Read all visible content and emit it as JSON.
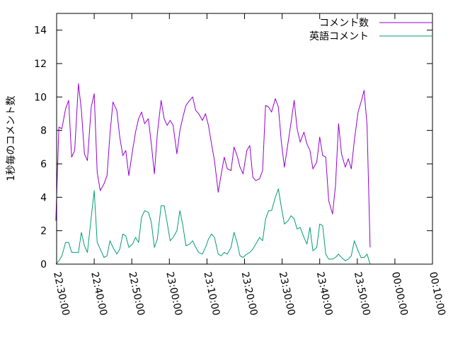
{
  "chart_data": {
    "type": "line",
    "title": "",
    "xlabel": "",
    "ylabel": "1秒毎のコメント数",
    "xlim": [
      "22:30:00",
      "00:10:00"
    ],
    "ylim": [
      0,
      15
    ],
    "x_ticks": [
      "22:30:00",
      "22:40:00",
      "22:50:00",
      "23:00:00",
      "23:10:00",
      "23:20:00",
      "23:30:00",
      "23:40:00",
      "23:50:00",
      "00:00:00",
      "00:10:00"
    ],
    "y_ticks": [
      0,
      2,
      4,
      6,
      8,
      10,
      12,
      14
    ],
    "grid": false,
    "legend_position": "top-right",
    "series": [
      {
        "name": "コメント数",
        "color": "#9400d3",
        "points": [
          [
            "22:29:48",
            2.6
          ],
          [
            "22:30:36",
            8.2
          ],
          [
            "22:31:24",
            8.1
          ],
          [
            "22:32:24",
            9.3
          ],
          [
            "22:33:12",
            9.8
          ],
          [
            "22:34:00",
            6.4
          ],
          [
            "22:34:48",
            6.8
          ],
          [
            "22:35:48",
            10.8
          ],
          [
            "22:36:36",
            9.2
          ],
          [
            "22:37:24",
            6.6
          ],
          [
            "22:38:12",
            6.2
          ],
          [
            "22:39:12",
            9.4
          ],
          [
            "22:40:00",
            10.2
          ],
          [
            "22:40:48",
            5.5
          ],
          [
            "22:41:36",
            4.4
          ],
          [
            "22:42:36",
            4.8
          ],
          [
            "22:43:24",
            5.3
          ],
          [
            "22:44:12",
            7.8
          ],
          [
            "22:45:00",
            9.7
          ],
          [
            "22:46:00",
            9.2
          ],
          [
            "22:46:48",
            7.6
          ],
          [
            "22:47:36",
            6.5
          ],
          [
            "22:48:24",
            6.8
          ],
          [
            "22:49:12",
            5.3
          ],
          [
            "22:50:12",
            6.8
          ],
          [
            "22:51:00",
            7.9
          ],
          [
            "22:51:48",
            8.7
          ],
          [
            "22:52:36",
            9.1
          ],
          [
            "22:53:24",
            8.4
          ],
          [
            "22:54:24",
            8.7
          ],
          [
            "22:55:12",
            7.2
          ],
          [
            "22:56:00",
            5.4
          ],
          [
            "22:56:48",
            7.8
          ],
          [
            "22:57:48",
            9.8
          ],
          [
            "22:58:36",
            8.7
          ],
          [
            "22:59:24",
            8.3
          ],
          [
            "23:00:12",
            8.6
          ],
          [
            "23:01:00",
            8.3
          ],
          [
            "23:02:00",
            6.6
          ],
          [
            "23:02:48",
            8.0
          ],
          [
            "23:03:36",
            8.8
          ],
          [
            "23:04:24",
            9.5
          ],
          [
            "23:05:24",
            9.8
          ],
          [
            "23:06:12",
            10.0
          ],
          [
            "23:07:00",
            9.2
          ],
          [
            "23:07:48",
            9.0
          ],
          [
            "23:08:48",
            8.6
          ],
          [
            "23:09:36",
            9.0
          ],
          [
            "23:10:24",
            8.3
          ],
          [
            "23:11:12",
            7.2
          ],
          [
            "23:12:00",
            6.2
          ],
          [
            "23:13:00",
            4.3
          ],
          [
            "23:13:48",
            5.4
          ],
          [
            "23:14:36",
            6.4
          ],
          [
            "23:15:24",
            5.7
          ],
          [
            "23:16:24",
            5.6
          ],
          [
            "23:17:12",
            7.0
          ],
          [
            "23:18:00",
            6.5
          ],
          [
            "23:18:48",
            5.8
          ],
          [
            "23:19:36",
            5.4
          ],
          [
            "23:20:36",
            6.8
          ],
          [
            "23:21:24",
            7.1
          ],
          [
            "23:22:12",
            5.2
          ],
          [
            "23:23:00",
            5.0
          ],
          [
            "23:24:00",
            5.1
          ],
          [
            "23:24:48",
            5.6
          ],
          [
            "23:25:36",
            9.5
          ],
          [
            "23:26:24",
            9.4
          ],
          [
            "23:27:12",
            9.1
          ],
          [
            "23:28:12",
            9.9
          ],
          [
            "23:29:00",
            9.4
          ],
          [
            "23:29:48",
            7.3
          ],
          [
            "23:30:36",
            5.8
          ],
          [
            "23:31:36",
            7.3
          ],
          [
            "23:32:24",
            8.5
          ],
          [
            "23:33:12",
            9.8
          ],
          [
            "23:34:00",
            8.1
          ],
          [
            "23:34:48",
            7.3
          ],
          [
            "23:35:48",
            7.9
          ],
          [
            "23:36:36",
            7.2
          ],
          [
            "23:37:24",
            6.8
          ],
          [
            "23:38:12",
            5.7
          ],
          [
            "23:39:12",
            6.1
          ],
          [
            "23:40:00",
            7.6
          ],
          [
            "23:40:48",
            6.5
          ],
          [
            "23:41:36",
            6.4
          ],
          [
            "23:42:24",
            3.8
          ],
          [
            "23:43:24",
            3.0
          ],
          [
            "23:44:12",
            4.7
          ],
          [
            "23:45:00",
            8.4
          ],
          [
            "23:45:48",
            6.6
          ],
          [
            "23:46:48",
            5.8
          ],
          [
            "23:47:36",
            6.3
          ],
          [
            "23:48:24",
            5.7
          ],
          [
            "23:49:12",
            7.4
          ],
          [
            "23:50:12",
            9.1
          ],
          [
            "23:51:00",
            9.7
          ],
          [
            "23:51:48",
            10.4
          ],
          [
            "23:52:36",
            8.3
          ],
          [
            "23:53:24",
            1.0
          ]
        ]
      },
      {
        "name": "英語コメント",
        "color": "#009e73",
        "points": [
          [
            "22:29:48",
            0.0
          ],
          [
            "22:30:36",
            0.2
          ],
          [
            "22:31:24",
            0.5
          ],
          [
            "22:32:24",
            1.3
          ],
          [
            "22:33:12",
            1.3
          ],
          [
            "22:34:00",
            0.7
          ],
          [
            "22:34:48",
            0.7
          ],
          [
            "22:35:48",
            0.7
          ],
          [
            "22:36:36",
            1.9
          ],
          [
            "22:37:24",
            1.1
          ],
          [
            "22:38:12",
            0.7
          ],
          [
            "22:39:12",
            2.8
          ],
          [
            "22:40:00",
            4.4
          ],
          [
            "22:40:48",
            1.3
          ],
          [
            "22:41:36",
            0.9
          ],
          [
            "22:42:36",
            0.4
          ],
          [
            "22:43:24",
            0.5
          ],
          [
            "22:44:12",
            1.4
          ],
          [
            "22:45:00",
            1.0
          ],
          [
            "22:46:00",
            0.6
          ],
          [
            "22:46:48",
            0.9
          ],
          [
            "22:47:36",
            1.8
          ],
          [
            "22:48:24",
            1.7
          ],
          [
            "22:49:12",
            1.0
          ],
          [
            "22:50:12",
            1.2
          ],
          [
            "22:51:00",
            1.6
          ],
          [
            "22:51:48",
            1.3
          ],
          [
            "22:52:36",
            2.8
          ],
          [
            "22:53:24",
            3.2
          ],
          [
            "22:54:24",
            3.1
          ],
          [
            "22:55:12",
            2.5
          ],
          [
            "22:56:00",
            1.0
          ],
          [
            "22:56:48",
            1.5
          ],
          [
            "22:57:48",
            3.5
          ],
          [
            "22:58:36",
            3.5
          ],
          [
            "22:59:24",
            2.5
          ],
          [
            "23:00:12",
            1.4
          ],
          [
            "23:01:00",
            1.6
          ],
          [
            "23:02:00",
            2.0
          ],
          [
            "23:02:48",
            3.2
          ],
          [
            "23:03:36",
            2.3
          ],
          [
            "23:04:24",
            1.1
          ],
          [
            "23:05:24",
            1.2
          ],
          [
            "23:06:12",
            1.4
          ],
          [
            "23:07:00",
            1.0
          ],
          [
            "23:07:48",
            0.7
          ],
          [
            "23:08:48",
            0.6
          ],
          [
            "23:09:36",
            1.0
          ],
          [
            "23:10:24",
            1.5
          ],
          [
            "23:11:12",
            1.8
          ],
          [
            "23:12:00",
            1.6
          ],
          [
            "23:13:00",
            0.6
          ],
          [
            "23:13:48",
            0.5
          ],
          [
            "23:14:36",
            0.7
          ],
          [
            "23:15:24",
            0.6
          ],
          [
            "23:16:24",
            1.0
          ],
          [
            "23:17:12",
            1.9
          ],
          [
            "23:18:00",
            1.3
          ],
          [
            "23:18:48",
            0.5
          ],
          [
            "23:19:36",
            0.4
          ],
          [
            "23:20:36",
            0.6
          ],
          [
            "23:21:24",
            0.7
          ],
          [
            "23:22:12",
            0.9
          ],
          [
            "23:23:00",
            1.2
          ],
          [
            "23:24:00",
            1.6
          ],
          [
            "23:24:48",
            1.4
          ],
          [
            "23:25:36",
            2.7
          ],
          [
            "23:26:24",
            3.2
          ],
          [
            "23:27:12",
            3.2
          ],
          [
            "23:28:12",
            4.0
          ],
          [
            "23:29:00",
            4.5
          ],
          [
            "23:29:48",
            3.4
          ],
          [
            "23:30:36",
            2.4
          ],
          [
            "23:31:36",
            2.6
          ],
          [
            "23:32:24",
            2.9
          ],
          [
            "23:33:12",
            2.7
          ],
          [
            "23:34:00",
            2.1
          ],
          [
            "23:34:48",
            2.2
          ],
          [
            "23:35:48",
            1.6
          ],
          [
            "23:36:36",
            1.2
          ],
          [
            "23:37:24",
            2.2
          ],
          [
            "23:38:12",
            0.8
          ],
          [
            "23:39:12",
            1.0
          ],
          [
            "23:40:00",
            2.4
          ],
          [
            "23:40:48",
            2.3
          ],
          [
            "23:41:36",
            0.6
          ],
          [
            "23:42:24",
            0.3
          ],
          [
            "23:43:24",
            0.3
          ],
          [
            "23:44:12",
            0.4
          ],
          [
            "23:45:00",
            0.6
          ],
          [
            "23:45:48",
            0.4
          ],
          [
            "23:46:48",
            0.2
          ],
          [
            "23:47:36",
            0.3
          ],
          [
            "23:48:24",
            0.5
          ],
          [
            "23:49:12",
            1.4
          ],
          [
            "23:50:12",
            0.8
          ],
          [
            "23:51:00",
            0.4
          ],
          [
            "23:51:48",
            0.4
          ],
          [
            "23:52:36",
            0.6
          ],
          [
            "23:53:24",
            0.0
          ]
        ]
      }
    ]
  }
}
